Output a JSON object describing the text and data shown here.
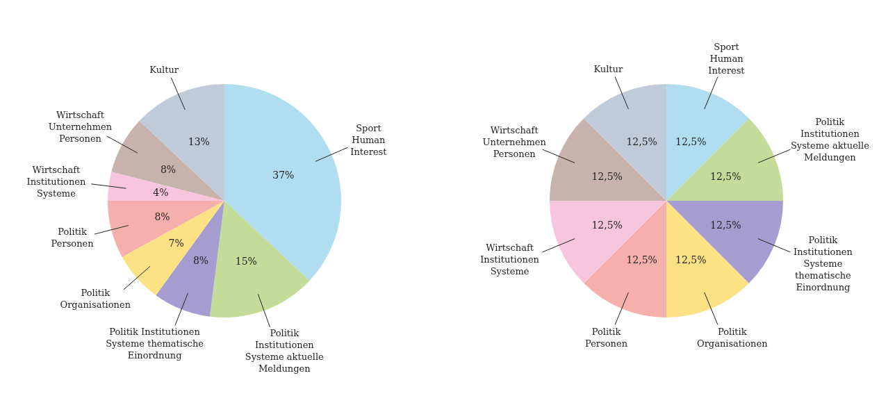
{
  "chart_data": [
    {
      "type": "pie",
      "categories": [
        "Sport\nHuman\nInterest",
        "Politik\nInstitutionen\nSysteme aktuelle\nMeldungen",
        "Politik Institutionen\nSysteme thematische\nEinordnung",
        "Politik\nOrganisationen",
        "Politik\nPersonen",
        "Wirtschaft\nInstitutionen\nSysteme",
        "Wirtschaft\nUnternehmen\nPersonen",
        "Kultur"
      ],
      "values": [
        37,
        15,
        8,
        7,
        8,
        4,
        8,
        13
      ],
      "value_labels": [
        "37%",
        "15%",
        "8%",
        "7%",
        "8%",
        "4%",
        "8%",
        "13%"
      ],
      "colors": [
        "#b0ddf0",
        "#c3dc9a",
        "#a59ccf",
        "#fde185",
        "#f5b0ab",
        "#f8c6dc",
        "#c8b3ac",
        "#bfcbd8"
      ]
    },
    {
      "type": "pie",
      "categories": [
        "Sport\nHuman\nInterest",
        "Politik\nInstitutionen\nSysteme aktuelle\nMeldungen",
        "Politik\nInstitutionen\nSysteme\nthematische\nEinordnung",
        "Politik\nOrganisationen",
        "Politik\nPersonen",
        "Wirtschaft\nInstitutionen\nSysteme",
        "Wirtschaft\nUnternehmen\nPersonen",
        "Kultur"
      ],
      "values": [
        12.5,
        12.5,
        12.5,
        12.5,
        12.5,
        12.5,
        12.5,
        12.5
      ],
      "value_labels": [
        "12,5%",
        "12,5%",
        "12,5%",
        "12,5%",
        "12,5%",
        "12,5%",
        "12,5%",
        "12,5%"
      ],
      "colors": [
        "#b0ddf0",
        "#c3dc9a",
        "#a59ccf",
        "#fde185",
        "#f5b0ab",
        "#f8c6dc",
        "#c8b3ac",
        "#bfcbd8"
      ]
    }
  ]
}
